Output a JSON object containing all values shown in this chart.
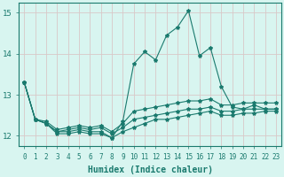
{
  "xlabel": "Humidex (Indice chaleur)",
  "background_color": "#d8f5f0",
  "line_color": "#1a7a6e",
  "grid_color": "#d8c8c8",
  "xlim": [
    -0.5,
    23.5
  ],
  "ylim": [
    11.75,
    15.25
  ],
  "yticks": [
    12,
    13,
    14,
    15
  ],
  "xticks": [
    0,
    1,
    2,
    3,
    4,
    5,
    6,
    7,
    8,
    9,
    10,
    11,
    12,
    13,
    14,
    15,
    16,
    17,
    18,
    19,
    20,
    21,
    22,
    23
  ],
  "series": [
    [
      13.3,
      12.4,
      12.3,
      12.1,
      12.1,
      12.15,
      12.1,
      12.1,
      11.95,
      12.1,
      12.2,
      12.3,
      12.4,
      12.4,
      12.45,
      12.5,
      12.55,
      12.6,
      12.5,
      12.5,
      12.55,
      12.55,
      12.6,
      12.6
    ],
    [
      13.3,
      12.4,
      12.3,
      12.1,
      12.15,
      12.2,
      12.15,
      12.2,
      12.05,
      12.2,
      12.4,
      12.45,
      12.5,
      12.55,
      12.6,
      12.65,
      12.65,
      12.7,
      12.6,
      12.6,
      12.65,
      12.65,
      12.65,
      12.65
    ],
    [
      13.3,
      12.4,
      12.35,
      12.15,
      12.2,
      12.25,
      12.2,
      12.25,
      12.1,
      12.3,
      12.6,
      12.65,
      12.7,
      12.75,
      12.8,
      12.85,
      12.85,
      12.9,
      12.75,
      12.75,
      12.8,
      12.8,
      12.8,
      12.8
    ],
    [
      13.3,
      12.4,
      12.3,
      12.05,
      12.05,
      12.1,
      12.05,
      12.05,
      11.95,
      12.35,
      13.75,
      14.05,
      13.85,
      14.45,
      14.65,
      15.05,
      13.95,
      14.15,
      13.2,
      12.7,
      12.65,
      12.75,
      12.65,
      12.65
    ]
  ],
  "marker": "*",
  "marker_size": 3,
  "line_width": 0.8,
  "font_color": "#1a7a6e",
  "tick_fontsize": 6,
  "xlabel_fontsize": 7
}
